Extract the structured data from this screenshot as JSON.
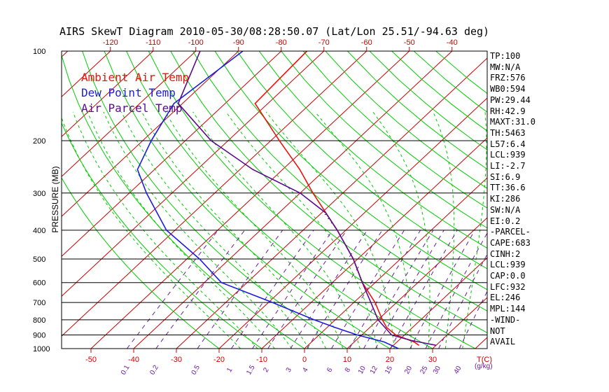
{
  "chart_data": {
    "type": "line",
    "title": "AIRS SkewT Diagram 2010-05-30/08:28:50.07 (Lat/Lon 25.51/-94.63 deg)",
    "ylabel": "PRESSURE (MB)",
    "xlabel": "T(C)",
    "mixing_ratio_unit": "(g/kg)",
    "pressure_ticks": [
      "100",
      "200",
      "300",
      "400",
      "500",
      "600",
      "700",
      "800",
      "900",
      "1000"
    ],
    "bottom_temp_ticks": [
      "-50",
      "-40",
      "-30",
      "-20",
      "-10",
      "0",
      "10",
      "20",
      "30"
    ],
    "top_temp_ticks": [
      "-120",
      "-110",
      "-100",
      "-90",
      "-80",
      "-70",
      "-60",
      "-50",
      "-40"
    ],
    "mixing_ratio_labels": [
      "0.1",
      "0.2",
      "0.5",
      "1",
      "1.5",
      "2",
      "3",
      "4",
      "6",
      "8",
      "10",
      "12",
      "15",
      "20",
      "25",
      "30",
      "40"
    ],
    "legend": [
      {
        "label": "Ambient Air Temp",
        "color": "#e8140c"
      },
      {
        "label": "Dew Point Temp",
        "color": "#1c1ce0"
      },
      {
        "label": "Air Parcel Temp",
        "color": "#5a0a8c"
      }
    ],
    "colors": {
      "isotherm": "#cc0000",
      "dry_adiabat": "#00cc00",
      "moist_adiabat": "#00cc00",
      "mixing_ratio": "#6a1aa0",
      "isobar": "#000000",
      "cape_hatch": "#000000"
    },
    "grid": true,
    "ylim": [
      1000,
      100
    ],
    "log_pressure": true,
    "series": [
      {
        "name": "Ambient Air Temp",
        "points": [
          [
            100,
            -74
          ],
          [
            150,
            -73
          ],
          [
            200,
            -58
          ],
          [
            250,
            -46
          ],
          [
            300,
            -37
          ],
          [
            400,
            -22
          ],
          [
            500,
            -11
          ],
          [
            600,
            -3
          ],
          [
            700,
            5
          ],
          [
            800,
            11
          ],
          [
            850,
            14
          ],
          [
            900,
            18
          ],
          [
            950,
            24
          ],
          [
            975,
            26
          ]
        ]
      },
      {
        "name": "Dew Point Temp",
        "points": [
          [
            100,
            -89
          ],
          [
            150,
            -92
          ],
          [
            200,
            -88
          ],
          [
            250,
            -84
          ],
          [
            300,
            -76
          ],
          [
            400,
            -62
          ],
          [
            500,
            -47
          ],
          [
            600,
            -36
          ],
          [
            700,
            -19
          ],
          [
            800,
            -5
          ],
          [
            850,
            2
          ],
          [
            900,
            9
          ],
          [
            950,
            17
          ],
          [
            1000,
            22
          ]
        ]
      },
      {
        "name": "Air Parcel Temp",
        "points": [
          [
            100,
            -99
          ],
          [
            150,
            -91
          ],
          [
            200,
            -74
          ],
          [
            250,
            -57
          ],
          [
            300,
            -40
          ],
          [
            350,
            -29
          ],
          [
            400,
            -22
          ],
          [
            500,
            -11
          ],
          [
            600,
            -3
          ],
          [
            700,
            4
          ],
          [
            800,
            10
          ],
          [
            900,
            17
          ],
          [
            939,
            23
          ],
          [
            975,
            30
          ]
        ]
      }
    ]
  },
  "indices": [
    "TP:100",
    "MW:N/A",
    "FRZ:576",
    "WB0:594",
    "PW:29.44",
    "RH:42.9",
    "MAXT:31.0",
    "TH:5463",
    "L57:6.4",
    "LCL:939",
    "LI:-2.7",
    "SI:6.9",
    "TT:36.6",
    "KI:286",
    "SW:N/A",
    "EI:0.2",
    "-PARCEL-",
    "CAPE:683",
    "CINH:2",
    "LCL:939",
    "CAP:0.0",
    "LFC:932",
    "EL:246",
    "MPL:144",
    "-WIND-",
    "NOT",
    "AVAIL"
  ]
}
